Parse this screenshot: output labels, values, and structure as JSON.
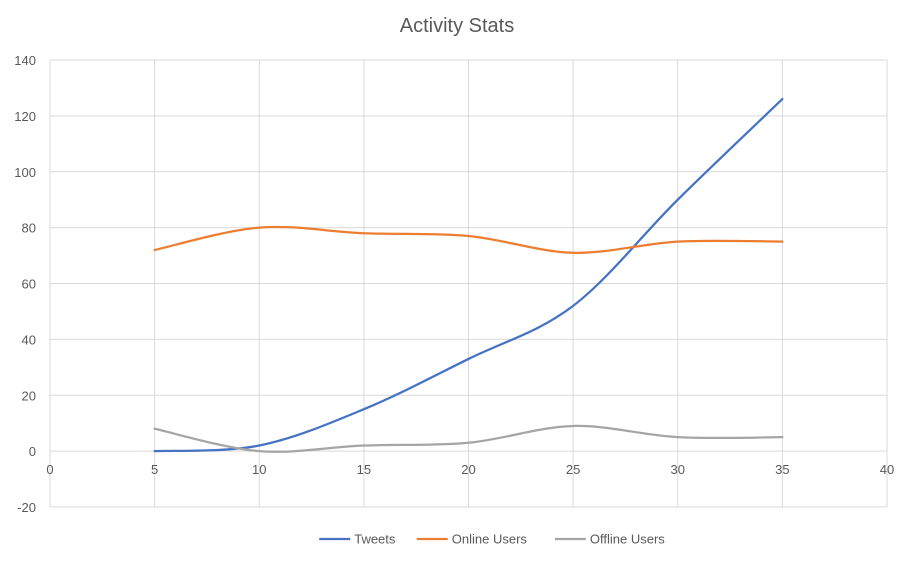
{
  "chart_data": {
    "type": "line",
    "title": "Activity Stats",
    "xlabel": "",
    "ylabel": "",
    "xlim": [
      0,
      40
    ],
    "ylim": [
      -20,
      140
    ],
    "x_ticks": [
      0,
      5,
      10,
      15,
      20,
      25,
      30,
      35,
      40
    ],
    "y_ticks": [
      -20,
      0,
      20,
      40,
      60,
      80,
      100,
      120,
      140
    ],
    "grid": true,
    "legend_position": "bottom",
    "smooth": true,
    "x": [
      5,
      10,
      15,
      20,
      25,
      30,
      35
    ],
    "series": [
      {
        "name": "Tweets",
        "color": "#4472c4",
        "values": [
          0,
          2,
          15,
          33,
          52,
          90,
          126
        ]
      },
      {
        "name": "Online Users",
        "color": "#ed7d31",
        "values": [
          72,
          80,
          78,
          77,
          71,
          75,
          75
        ]
      },
      {
        "name": "Offline Users",
        "color": "#a5a5a5",
        "values": [
          8,
          0,
          2,
          3,
          9,
          5,
          5
        ]
      }
    ]
  }
}
